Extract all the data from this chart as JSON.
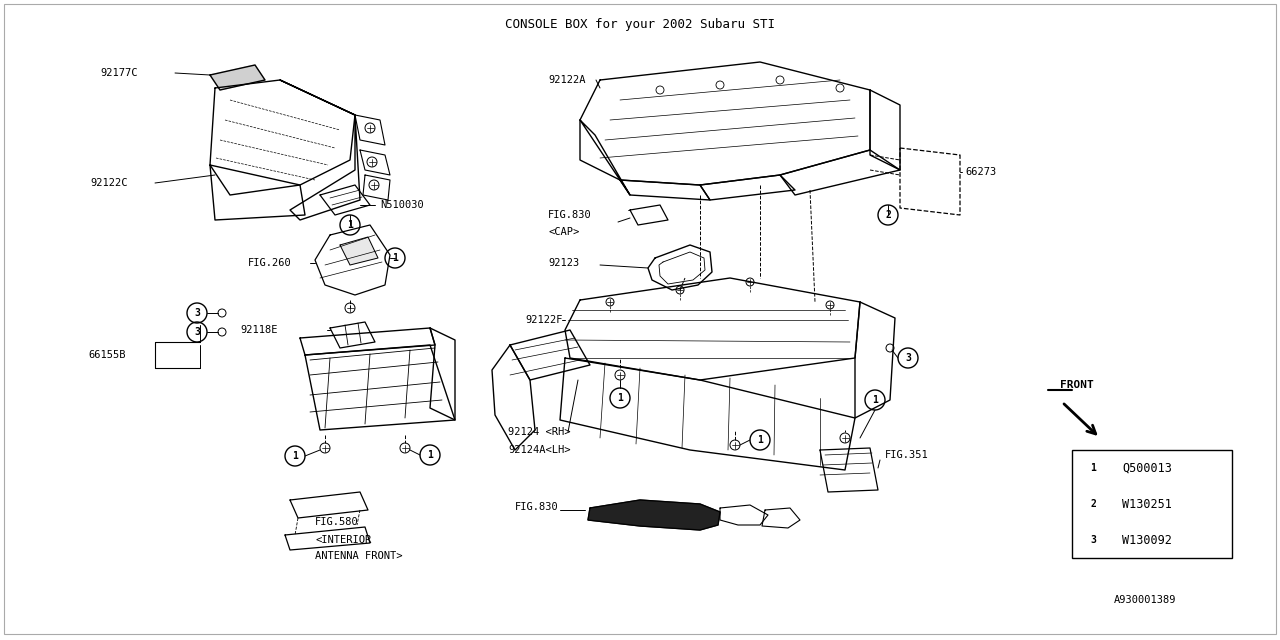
{
  "title": "CONSOLE BOX for your 2002 Subaru STI",
  "bg_color": "#FFFFFF",
  "line_color": "#000000",
  "fig_width": 12.8,
  "fig_height": 6.4,
  "legend_items": [
    {
      "num": "1",
      "code": "Q500013"
    },
    {
      "num": "2",
      "code": "W130251"
    },
    {
      "num": "3",
      "code": "W130092"
    }
  ],
  "diagram_ref": "A930001389",
  "border_color": "#cccccc"
}
